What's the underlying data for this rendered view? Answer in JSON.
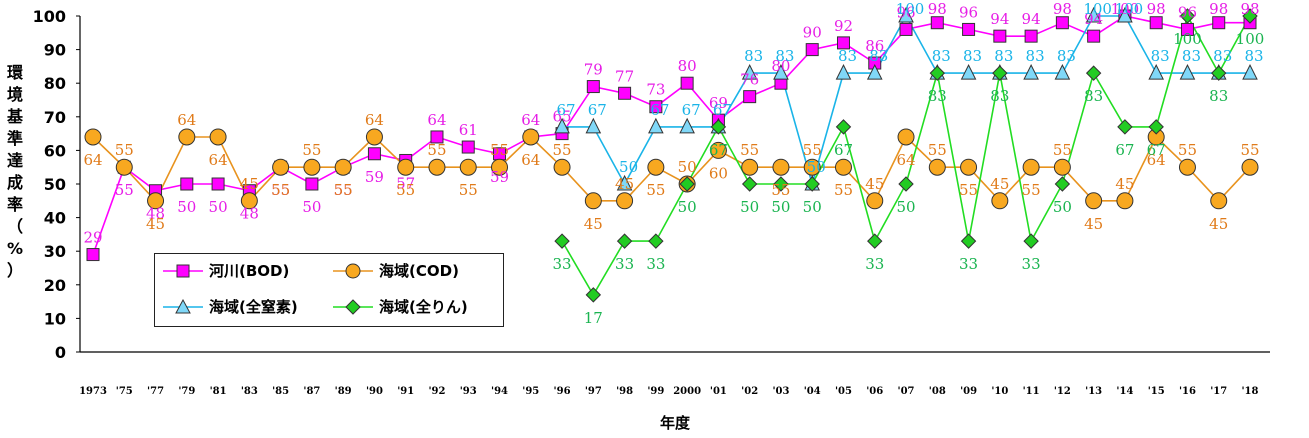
{
  "chart_data": {
    "type": "line",
    "ylabel_chars": [
      "環",
      "境",
      "基",
      "準",
      "達",
      "成",
      "率",
      "（",
      "%",
      "）"
    ],
    "xlabel": "年度",
    "ylim": [
      0,
      100
    ],
    "yticks": [
      0,
      10,
      20,
      30,
      40,
      50,
      60,
      70,
      80,
      90,
      100
    ],
    "categories": [
      "1973",
      "'75",
      "'77",
      "'79",
      "'81",
      "'83",
      "'85",
      "'87",
      "'89",
      "'90",
      "'91",
      "'92",
      "'93",
      "'94",
      "'95",
      "'96",
      "'97",
      "'98",
      "'99",
      "2000",
      "'01",
      "'02",
      "'03",
      "'04",
      "'05",
      "'06",
      "'07",
      "'08",
      "'09",
      "'10",
      "'11",
      "'12",
      "'13",
      "'14",
      "'15",
      "'16",
      "'17",
      "'18"
    ],
    "legend_position": "bottom-left",
    "series": [
      {
        "name": "河川(BOD)",
        "marker": "square",
        "color": "#ff00ff",
        "label_color": "#e61ee6",
        "values": [
          29,
          55,
          48,
          50,
          50,
          48,
          55,
          50,
          55,
          59,
          57,
          64,
          61,
          59,
          64,
          65,
          79,
          77,
          73,
          80,
          69,
          76,
          80,
          90,
          92,
          86,
          96,
          98,
          96,
          94,
          94,
          98,
          94,
          100,
          98,
          96,
          98,
          98
        ]
      },
      {
        "name": "海域(COD)",
        "marker": "circle",
        "color": "#e8931e",
        "label_color": "#e07b1a",
        "values": [
          64,
          55,
          45,
          64,
          64,
          45,
          55,
          55,
          55,
          64,
          55,
          55,
          55,
          55,
          64,
          55,
          45,
          45,
          55,
          50,
          60,
          55,
          55,
          55,
          55,
          45,
          64,
          55,
          55,
          45,
          55,
          55,
          45,
          45,
          64,
          55,
          45,
          55
        ]
      },
      {
        "name": "海域(全窒素)",
        "marker": "triangle",
        "color": "#1ab4e8",
        "label_color": "#1ab4e8",
        "values": [
          null,
          null,
          null,
          null,
          null,
          null,
          null,
          null,
          null,
          null,
          null,
          null,
          null,
          null,
          null,
          67,
          67,
          50,
          67,
          67,
          67,
          83,
          83,
          50,
          83,
          83,
          100,
          83,
          83,
          83,
          83,
          83,
          100,
          100,
          83,
          83,
          83,
          83
        ]
      },
      {
        "name": "海域(全りん)",
        "marker": "diamond",
        "color": "#22dd22",
        "label_color": "#1ab450",
        "values": [
          null,
          null,
          null,
          null,
          null,
          null,
          null,
          null,
          null,
          null,
          null,
          null,
          null,
          null,
          null,
          33,
          17,
          33,
          33,
          50,
          67,
          50,
          50,
          50,
          67,
          33,
          50,
          83,
          33,
          83,
          33,
          50,
          83,
          67,
          67,
          100,
          83,
          100
        ]
      }
    ]
  }
}
